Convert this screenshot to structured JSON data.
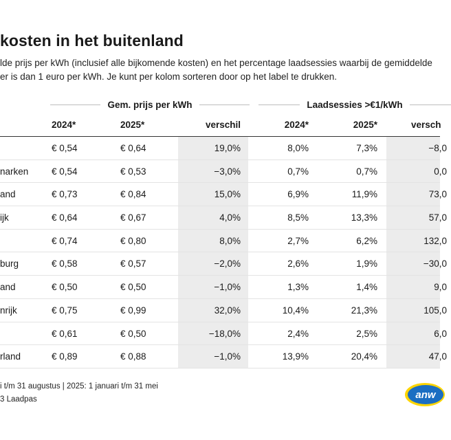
{
  "title": "kosten in het buitenland",
  "subtitle": {
    "line1": "lde prijs per kWh (inclusief alle bijkomende kosten) en het percentage laadsessies waarbij de gemiddelde",
    "line2": "er is dan 1 euro per kWh. Je kunt per kolom sorteren door op het label te drukken."
  },
  "groups": {
    "price": "Gem. prijs per kWh",
    "sessions": "Laadsessies >€1/kWh"
  },
  "columns": {
    "price_2024": "2024*",
    "price_2025": "2025*",
    "price_diff": "verschil",
    "sessions_2024": "2024*",
    "sessions_2025": "2025*",
    "sessions_diff": "versch"
  },
  "rows": [
    {
      "country": "",
      "p24": "€ 0,54",
      "p25": "€ 0,64",
      "pdiff": "19,0%",
      "l24": "8,0%",
      "l25": "7,3%",
      "ldiff": "−8,0"
    },
    {
      "country": "narken",
      "p24": "€ 0,54",
      "p25": "€ 0,53",
      "pdiff": "−3,0%",
      "l24": "0,7%",
      "l25": "0,7%",
      "ldiff": "0,0"
    },
    {
      "country": "and",
      "p24": "€ 0,73",
      "p25": "€ 0,84",
      "pdiff": "15,0%",
      "l24": "6,9%",
      "l25": "11,9%",
      "ldiff": "73,0"
    },
    {
      "country": "ijk",
      "p24": "€ 0,64",
      "p25": "€ 0,67",
      "pdiff": "4,0%",
      "l24": "8,5%",
      "l25": "13,3%",
      "ldiff": "57,0"
    },
    {
      "country": "",
      "p24": "€ 0,74",
      "p25": "€ 0,80",
      "pdiff": "8,0%",
      "l24": "2,7%",
      "l25": "6,2%",
      "ldiff": "132,0"
    },
    {
      "country": "burg",
      "p24": "€ 0,58",
      "p25": "€ 0,57",
      "pdiff": "−2,0%",
      "l24": "2,6%",
      "l25": "1,9%",
      "ldiff": "−30,0"
    },
    {
      "country": "and",
      "p24": "€ 0,50",
      "p25": "€ 0,50",
      "pdiff": "−1,0%",
      "l24": "1,3%",
      "l25": "1,4%",
      "ldiff": "9,0"
    },
    {
      "country": "nrijk",
      "p24": "€ 0,75",
      "p25": "€ 0,99",
      "pdiff": "32,0%",
      "l24": "10,4%",
      "l25": "21,3%",
      "ldiff": "105,0"
    },
    {
      "country": "",
      "p24": "€ 0,61",
      "p25": "€ 0,50",
      "pdiff": "−18,0%",
      "l24": "2,4%",
      "l25": "2,5%",
      "ldiff": "6,0"
    },
    {
      "country": "rland",
      "p24": "€ 0,89",
      "p25": "€ 0,88",
      "pdiff": "−1,0%",
      "l24": "13,9%",
      "l25": "20,4%",
      "ldiff": "47,0"
    }
  ],
  "footnote": {
    "line1": "i t/m 31 augustus | 2025: 1 januari t/m 31 mei",
    "line2": "3 Laadpas"
  },
  "logo": {
    "text": "anw",
    "icon": "anwb-logo-icon",
    "colors": {
      "blue": "#1b6ec2",
      "yellow": "#ffd500"
    }
  }
}
